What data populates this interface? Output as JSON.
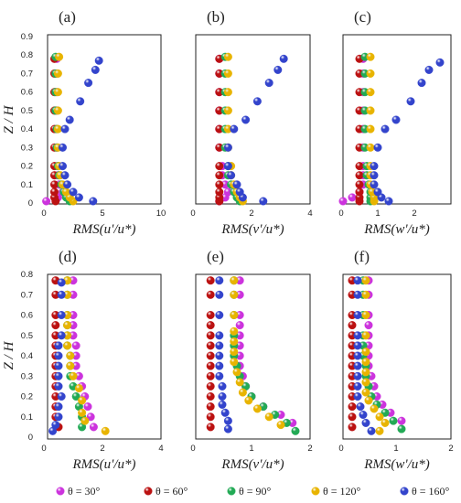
{
  "colors": {
    "theta30": "#cc33dd",
    "theta60": "#bb1111",
    "theta90": "#22aa55",
    "theta120": "#e8b400",
    "theta160": "#3344cc"
  },
  "y_axis": {
    "label": "Z / H",
    "ticks": [
      "0",
      "0.1",
      "0.2",
      "0.3",
      "0.4",
      "0.5",
      "0.6",
      "0.7",
      "0.8",
      "0.9"
    ]
  },
  "legend": [
    {
      "key": "theta30",
      "label": "θ = 30°"
    },
    {
      "key": "theta60",
      "label": "θ = 60°"
    },
    {
      "key": "theta90",
      "label": "θ = 90°"
    },
    {
      "key": "theta120",
      "label": "θ = 120°"
    },
    {
      "key": "theta160",
      "label": "θ = 160°"
    }
  ],
  "chart_data": [
    {
      "type": "scatter",
      "panel": "(a)",
      "xlabel": "RMS(u'/u*)",
      "xlim": [
        0,
        10
      ],
      "xticks": [
        "0",
        "5",
        "10"
      ],
      "ylim": [
        0,
        0.9
      ],
      "series": [
        {
          "key": "theta30",
          "x": [
            0.2,
            1.2,
            1.6,
            1.3,
            1.2,
            1.2,
            1.1,
            1.1,
            1.1,
            1.1,
            1.1,
            1.1
          ],
          "z": [
            0.01,
            0.03,
            0.06,
            0.1,
            0.15,
            0.2,
            0.3,
            0.4,
            0.5,
            0.6,
            0.7,
            0.78
          ]
        },
        {
          "key": "theta60",
          "x": [
            1.0,
            0.9,
            0.9,
            0.9,
            0.9,
            0.9,
            0.9,
            0.9,
            0.9,
            0.9,
            0.9,
            0.9
          ],
          "z": [
            0.01,
            0.03,
            0.06,
            0.1,
            0.15,
            0.2,
            0.3,
            0.4,
            0.5,
            0.6,
            0.7,
            0.78
          ]
        },
        {
          "key": "theta90",
          "x": [
            2.2,
            1.9,
            1.7,
            1.5,
            1.3,
            1.2,
            1.1,
            1.1,
            1.0,
            1.0,
            1.0,
            1.0
          ],
          "z": [
            0.01,
            0.03,
            0.06,
            0.1,
            0.15,
            0.2,
            0.3,
            0.4,
            0.5,
            0.6,
            0.7,
            0.79
          ]
        },
        {
          "key": "theta120",
          "x": [
            2.5,
            2.2,
            1.9,
            1.6,
            1.4,
            1.3,
            1.2,
            1.2,
            1.2,
            1.2,
            1.2,
            1.3
          ],
          "z": [
            0.01,
            0.03,
            0.06,
            0.1,
            0.15,
            0.2,
            0.3,
            0.4,
            0.5,
            0.6,
            0.7,
            0.79
          ]
        },
        {
          "key": "theta160",
          "x": [
            4.2,
            3.0,
            2.5,
            2.0,
            1.8,
            1.6,
            1.6,
            1.8,
            2.2,
            3.1,
            3.8,
            4.4,
            4.7
          ],
          "z": [
            0.01,
            0.03,
            0.06,
            0.1,
            0.15,
            0.2,
            0.3,
            0.4,
            0.45,
            0.55,
            0.65,
            0.72,
            0.77
          ]
        }
      ]
    },
    {
      "type": "scatter",
      "panel": "(b)",
      "xlabel": "RMS(v'/u*)",
      "xlim": [
        0,
        4
      ],
      "xticks": [
        "0",
        "2",
        "4"
      ],
      "ylim": [
        0,
        0.9
      ],
      "series": [
        {
          "key": "theta30",
          "x": [
            0.9,
            1.1,
            1.2,
            1.1,
            1.0,
            1.0,
            0.9,
            0.9,
            0.9,
            0.9,
            0.9,
            0.9
          ],
          "z": [
            0.01,
            0.03,
            0.06,
            0.1,
            0.15,
            0.2,
            0.3,
            0.4,
            0.5,
            0.6,
            0.7,
            0.78
          ]
        },
        {
          "key": "theta60",
          "x": [
            0.9,
            0.9,
            0.9,
            0.9,
            0.9,
            0.9,
            0.9,
            0.9,
            0.9,
            0.9,
            0.9,
            0.9
          ],
          "z": [
            0.01,
            0.03,
            0.06,
            0.1,
            0.15,
            0.2,
            0.3,
            0.4,
            0.5,
            0.6,
            0.7,
            0.78
          ]
        },
        {
          "key": "theta90",
          "x": [
            1.6,
            1.5,
            1.4,
            1.3,
            1.2,
            1.2,
            1.1,
            1.1,
            1.1,
            1.1,
            1.1,
            1.1
          ],
          "z": [
            0.01,
            0.03,
            0.06,
            0.1,
            0.15,
            0.2,
            0.3,
            0.4,
            0.5,
            0.6,
            0.7,
            0.79
          ]
        },
        {
          "key": "theta120",
          "x": [
            1.7,
            1.6,
            1.5,
            1.4,
            1.3,
            1.3,
            1.2,
            1.2,
            1.2,
            1.2,
            1.2,
            1.2
          ],
          "z": [
            0.01,
            0.03,
            0.06,
            0.1,
            0.15,
            0.2,
            0.3,
            0.4,
            0.5,
            0.6,
            0.7,
            0.79
          ]
        },
        {
          "key": "theta160",
          "x": [
            2.4,
            1.7,
            1.6,
            1.5,
            1.3,
            1.2,
            1.2,
            1.4,
            1.8,
            2.2,
            2.6,
            2.9,
            3.1
          ],
          "z": [
            0.01,
            0.03,
            0.06,
            0.1,
            0.15,
            0.2,
            0.3,
            0.4,
            0.45,
            0.55,
            0.65,
            0.72,
            0.78
          ]
        }
      ]
    },
    {
      "type": "scatter",
      "panel": "(c)",
      "xlabel": "RMS(w'/u*)",
      "xlim": [
        0,
        3
      ],
      "xticks": [
        "0",
        "1",
        "2"
      ],
      "ylim": [
        0,
        0.9
      ],
      "series": [
        {
          "key": "theta30",
          "x": [
            0.05,
            0.3,
            0.5,
            0.6,
            0.6,
            0.6,
            0.6,
            0.6,
            0.6,
            0.6,
            0.6,
            0.6
          ],
          "z": [
            0.01,
            0.03,
            0.06,
            0.1,
            0.15,
            0.2,
            0.3,
            0.4,
            0.5,
            0.6,
            0.7,
            0.78
          ]
        },
        {
          "key": "theta60",
          "x": [
            0.5,
            0.5,
            0.5,
            0.5,
            0.5,
            0.5,
            0.5,
            0.5,
            0.5,
            0.5,
            0.5,
            0.5
          ],
          "z": [
            0.01,
            0.03,
            0.06,
            0.1,
            0.15,
            0.2,
            0.3,
            0.4,
            0.5,
            0.6,
            0.7,
            0.78
          ]
        },
        {
          "key": "theta90",
          "x": [
            0.8,
            0.8,
            0.8,
            0.75,
            0.7,
            0.7,
            0.65,
            0.65,
            0.65,
            0.65,
            0.65,
            0.65
          ],
          "z": [
            0.01,
            0.03,
            0.06,
            0.1,
            0.15,
            0.2,
            0.3,
            0.4,
            0.5,
            0.6,
            0.7,
            0.79
          ]
        },
        {
          "key": "theta120",
          "x": [
            0.9,
            0.9,
            0.85,
            0.8,
            0.8,
            0.8,
            0.8,
            0.8,
            0.8,
            0.8,
            0.8,
            0.8
          ],
          "z": [
            0.01,
            0.03,
            0.06,
            0.1,
            0.15,
            0.2,
            0.3,
            0.4,
            0.5,
            0.6,
            0.7,
            0.79
          ]
        },
        {
          "key": "theta160",
          "x": [
            1.3,
            1.1,
            1.0,
            0.9,
            0.9,
            0.9,
            1.0,
            1.2,
            1.5,
            1.9,
            2.2,
            2.4,
            2.7
          ],
          "z": [
            0.01,
            0.03,
            0.06,
            0.1,
            0.15,
            0.2,
            0.3,
            0.4,
            0.45,
            0.55,
            0.65,
            0.72,
            0.76
          ]
        }
      ]
    },
    {
      "type": "scatter",
      "panel": "(d)",
      "xlabel": "RMS(u'/u*)",
      "xlim": [
        0,
        4
      ],
      "xticks": [
        "0",
        "2",
        "4"
      ],
      "ylim": [
        0,
        0.8
      ],
      "series": [
        {
          "key": "theta30",
          "x": [
            1.7,
            1.6,
            1.5,
            1.4,
            1.3,
            1.2,
            1.1,
            1.1,
            1.1,
            1.0,
            1.0,
            1.0,
            1.0,
            1.0
          ],
          "z": [
            0.05,
            0.1,
            0.15,
            0.2,
            0.25,
            0.3,
            0.35,
            0.4,
            0.45,
            0.5,
            0.55,
            0.6,
            0.7,
            0.77
          ]
        },
        {
          "key": "theta60",
          "x": [
            0.5,
            0.4,
            0.4,
            0.4,
            0.4,
            0.4,
            0.4,
            0.4,
            0.4,
            0.4,
            0.4,
            0.4,
            0.4,
            0.4
          ],
          "z": [
            0.05,
            0.1,
            0.15,
            0.2,
            0.25,
            0.3,
            0.35,
            0.4,
            0.45,
            0.5,
            0.55,
            0.6,
            0.7,
            0.77
          ]
        },
        {
          "key": "theta90",
          "x": [
            1.3,
            1.3,
            1.2,
            1.1,
            1.0,
            0.9,
            0.9,
            0.9,
            0.8,
            0.8,
            0.8,
            0.8,
            0.8,
            0.8
          ],
          "z": [
            0.05,
            0.1,
            0.15,
            0.2,
            0.25,
            0.3,
            0.35,
            0.4,
            0.45,
            0.5,
            0.55,
            0.6,
            0.7,
            0.77
          ]
        },
        {
          "key": "theta120",
          "x": [
            2.1,
            1.4,
            1.3,
            1.3,
            1.2,
            1.0,
            0.9,
            0.9,
            0.8,
            0.8,
            0.8,
            0.8,
            0.8,
            0.8
          ],
          "z": [
            0.03,
            0.08,
            0.12,
            0.18,
            0.24,
            0.3,
            0.35,
            0.4,
            0.45,
            0.5,
            0.55,
            0.6,
            0.7,
            0.77
          ]
        },
        {
          "key": "theta160",
          "x": [
            0.3,
            0.4,
            0.5,
            0.5,
            0.6,
            0.5,
            0.5,
            0.5,
            0.5,
            0.5,
            0.6,
            0.6,
            0.6,
            0.6
          ],
          "z": [
            0.03,
            0.06,
            0.1,
            0.15,
            0.2,
            0.25,
            0.3,
            0.35,
            0.4,
            0.45,
            0.5,
            0.6,
            0.7,
            0.76
          ]
        }
      ]
    },
    {
      "type": "scatter",
      "panel": "(e)",
      "xlabel": "RMS(v'/u*)",
      "xlim": [
        0,
        2
      ],
      "xticks": [
        "0",
        "1",
        "2"
      ],
      "ylim": [
        0,
        0.8
      ],
      "series": [
        {
          "key": "theta30",
          "x": [
            1.7,
            1.5,
            1.2,
            1.0,
            0.9,
            0.85,
            0.8,
            0.8,
            0.8,
            0.8,
            0.8,
            0.8,
            0.8,
            0.8
          ],
          "z": [
            0.07,
            0.11,
            0.15,
            0.2,
            0.25,
            0.3,
            0.35,
            0.4,
            0.45,
            0.5,
            0.55,
            0.6,
            0.7,
            0.77
          ]
        },
        {
          "key": "theta60",
          "x": [
            0.3,
            0.3,
            0.3,
            0.3,
            0.3,
            0.3,
            0.3,
            0.3,
            0.3,
            0.3,
            0.3,
            0.3,
            0.3,
            0.3
          ],
          "z": [
            0.05,
            0.1,
            0.15,
            0.2,
            0.25,
            0.3,
            0.35,
            0.4,
            0.45,
            0.5,
            0.55,
            0.6,
            0.7,
            0.77
          ]
        },
        {
          "key": "theta90",
          "x": [
            1.75,
            1.6,
            1.4,
            1.2,
            1.0,
            0.9,
            0.8,
            0.75,
            0.7,
            0.7,
            0.7,
            0.7,
            0.7,
            0.7
          ],
          "z": [
            0.03,
            0.07,
            0.11,
            0.15,
            0.2,
            0.25,
            0.3,
            0.35,
            0.4,
            0.45,
            0.5,
            0.6,
            0.7,
            0.77
          ]
        },
        {
          "key": "theta120",
          "x": [
            1.5,
            1.3,
            1.1,
            0.95,
            0.85,
            0.8,
            0.75,
            0.7,
            0.7,
            0.7,
            0.7,
            0.7,
            0.7,
            0.7
          ],
          "z": [
            0.06,
            0.1,
            0.14,
            0.18,
            0.22,
            0.27,
            0.32,
            0.37,
            0.42,
            0.47,
            0.52,
            0.6,
            0.7,
            0.77
          ]
        },
        {
          "key": "theta160",
          "x": [
            0.6,
            0.6,
            0.55,
            0.5,
            0.5,
            0.5,
            0.45,
            0.45,
            0.45,
            0.45,
            0.45,
            0.45,
            0.45,
            0.45
          ],
          "z": [
            0.04,
            0.08,
            0.12,
            0.16,
            0.2,
            0.25,
            0.3,
            0.35,
            0.4,
            0.45,
            0.5,
            0.6,
            0.7,
            0.77
          ]
        }
      ]
    },
    {
      "type": "scatter",
      "panel": "(f)",
      "xlabel": "RMS(w'/u*)",
      "xlim": [
        0,
        2
      ],
      "xticks": [
        "0",
        "1",
        "2"
      ],
      "ylim": [
        0,
        0.8
      ],
      "series": [
        {
          "key": "theta30",
          "x": [
            1.1,
            0.9,
            0.75,
            0.65,
            0.6,
            0.55,
            0.5,
            0.5,
            0.5,
            0.5,
            0.5,
            0.5,
            0.5,
            0.5
          ],
          "z": [
            0.08,
            0.12,
            0.16,
            0.2,
            0.25,
            0.3,
            0.35,
            0.4,
            0.45,
            0.5,
            0.55,
            0.6,
            0.7,
            0.77
          ]
        },
        {
          "key": "theta60",
          "x": [
            0.2,
            0.2,
            0.2,
            0.2,
            0.2,
            0.2,
            0.2,
            0.2,
            0.2,
            0.2,
            0.2,
            0.2,
            0.2,
            0.2
          ],
          "z": [
            0.05,
            0.1,
            0.15,
            0.2,
            0.25,
            0.3,
            0.35,
            0.4,
            0.45,
            0.5,
            0.55,
            0.6,
            0.7,
            0.77
          ]
        },
        {
          "key": "theta90",
          "x": [
            1.1,
            0.95,
            0.8,
            0.65,
            0.55,
            0.5,
            0.45,
            0.45,
            0.4,
            0.4,
            0.4,
            0.4,
            0.4,
            0.4
          ],
          "z": [
            0.04,
            0.08,
            0.12,
            0.16,
            0.2,
            0.25,
            0.3,
            0.35,
            0.4,
            0.45,
            0.5,
            0.6,
            0.7,
            0.77
          ]
        },
        {
          "key": "theta120",
          "x": [
            0.7,
            0.8,
            0.7,
            0.6,
            0.5,
            0.45,
            0.45,
            0.45,
            0.45,
            0.45,
            0.45,
            0.45,
            0.45,
            0.45
          ],
          "z": [
            0.03,
            0.07,
            0.1,
            0.14,
            0.18,
            0.22,
            0.27,
            0.32,
            0.37,
            0.42,
            0.5,
            0.6,
            0.7,
            0.77
          ]
        },
        {
          "key": "theta160",
          "x": [
            0.55,
            0.45,
            0.4,
            0.35,
            0.3,
            0.3,
            0.3,
            0.3,
            0.3,
            0.3,
            0.3,
            0.3,
            0.3,
            0.3
          ],
          "z": [
            0.03,
            0.07,
            0.11,
            0.15,
            0.2,
            0.25,
            0.3,
            0.35,
            0.4,
            0.45,
            0.5,
            0.6,
            0.7,
            0.77
          ]
        }
      ]
    }
  ]
}
